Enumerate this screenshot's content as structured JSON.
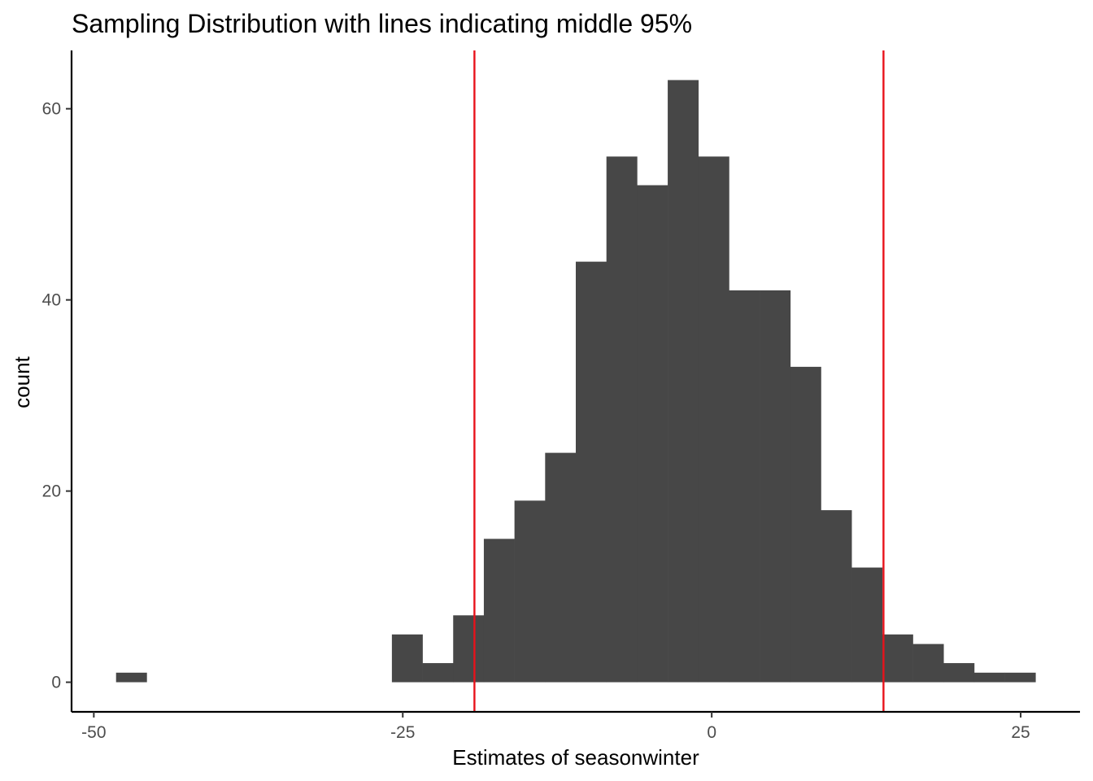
{
  "chart_data": {
    "type": "bar",
    "title": "Sampling Distribution with lines indicating middle 95%",
    "xlabel": "Estimates of seasonwinter",
    "ylabel": "count",
    "xlim": [
      -51.8,
      29.8
    ],
    "ylim": [
      -3.1,
      66.1
    ],
    "x_ticks": [
      -50,
      -25,
      0,
      25
    ],
    "x_tick_labels": [
      "-50",
      "-25",
      "0",
      "25"
    ],
    "y_ticks": [
      0,
      20,
      40,
      60
    ],
    "y_tick_labels": [
      "0",
      "20",
      "40",
      "60"
    ],
    "grid": false,
    "bin_width": 2.48,
    "bins": [
      {
        "xmin": -48.2,
        "xmax": -45.72,
        "count": 1
      },
      {
        "xmin": -25.88,
        "xmax": -23.4,
        "count": 5
      },
      {
        "xmin": -23.4,
        "xmax": -20.92,
        "count": 2
      },
      {
        "xmin": -20.92,
        "xmax": -18.44,
        "count": 7
      },
      {
        "xmin": -18.44,
        "xmax": -15.96,
        "count": 15
      },
      {
        "xmin": -15.96,
        "xmax": -13.48,
        "count": 19
      },
      {
        "xmin": -13.48,
        "xmax": -11.0,
        "count": 24
      },
      {
        "xmin": -11.0,
        "xmax": -8.52,
        "count": 44
      },
      {
        "xmin": -8.52,
        "xmax": -6.04,
        "count": 55
      },
      {
        "xmin": -6.04,
        "xmax": -3.56,
        "count": 52
      },
      {
        "xmin": -3.56,
        "xmax": -1.08,
        "count": 63
      },
      {
        "xmin": -1.08,
        "xmax": 1.4,
        "count": 55
      },
      {
        "xmin": 1.4,
        "xmax": 3.88,
        "count": 41
      },
      {
        "xmin": 3.88,
        "xmax": 6.36,
        "count": 41
      },
      {
        "xmin": 6.36,
        "xmax": 8.84,
        "count": 33
      },
      {
        "xmin": 8.84,
        "xmax": 11.32,
        "count": 18
      },
      {
        "xmin": 11.32,
        "xmax": 13.8,
        "count": 12
      },
      {
        "xmin": 13.8,
        "xmax": 16.28,
        "count": 5
      },
      {
        "xmin": 16.28,
        "xmax": 18.76,
        "count": 4
      },
      {
        "xmin": 18.76,
        "xmax": 21.24,
        "count": 2
      },
      {
        "xmin": 21.24,
        "xmax": 23.72,
        "count": 1
      },
      {
        "xmin": 23.72,
        "xmax": 26.2,
        "count": 1
      }
    ],
    "vlines": [
      {
        "x": -19.2,
        "color": "#e8121b"
      },
      {
        "x": 13.9,
        "color": "#e8121b"
      }
    ],
    "bar_color": "#474747",
    "axis_color": "#000000",
    "tick_label_color": "#4d4d4d"
  }
}
